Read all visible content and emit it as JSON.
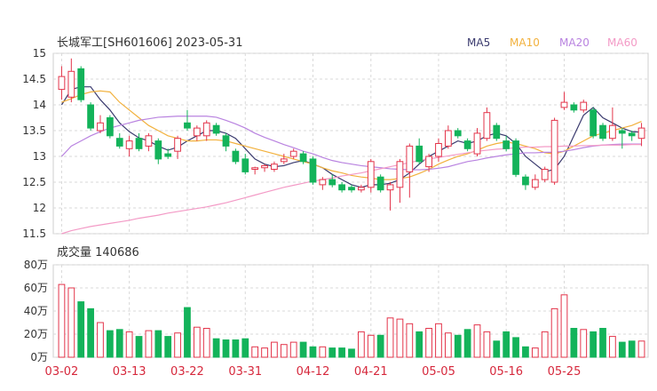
{
  "header": {
    "title": "长城军工[SH601606] 2023-05-31",
    "legend": [
      {
        "label": "MA5",
        "color": "#3a3a6e"
      },
      {
        "label": "MA10",
        "color": "#f2b13d"
      },
      {
        "label": "MA20",
        "color": "#b983e0"
      },
      {
        "label": "MA60",
        "color": "#f39ac6"
      }
    ]
  },
  "volume_panel": {
    "title": "成交量 140686"
  },
  "colors": {
    "up": "#e3344a",
    "down": "#13b35a",
    "grid": "#d9d9d9",
    "axis_text": "#333333",
    "date_text": "#d6283c"
  },
  "chart_data": [
    {
      "type": "candlestick",
      "price_axis": {
        "ylim": [
          11.5,
          15
        ],
        "ticks": [
          "11.5",
          "12",
          "12.5",
          "13",
          "13.5",
          "14",
          "14.5",
          "15"
        ]
      },
      "x_labels": [
        "03-02",
        "03-13",
        "03-22",
        "03-31",
        "04-12",
        "04-21",
        "05-05",
        "05-16",
        "05-25"
      ],
      "x_label_index": [
        0,
        7,
        13,
        19,
        26,
        32,
        39,
        46,
        52
      ],
      "candles": [
        {
          "o": 14.3,
          "h": 14.75,
          "l": 14.1,
          "c": 14.55
        },
        {
          "o": 14.15,
          "h": 14.9,
          "l": 14.05,
          "c": 14.65
        },
        {
          "o": 14.7,
          "h": 14.75,
          "l": 14.05,
          "c": 14.1
        },
        {
          "o": 14.0,
          "h": 14.05,
          "l": 13.5,
          "c": 13.55
        },
        {
          "o": 13.5,
          "h": 13.8,
          "l": 13.45,
          "c": 13.65
        },
        {
          "o": 13.75,
          "h": 13.8,
          "l": 13.35,
          "c": 13.4
        },
        {
          "o": 13.35,
          "h": 13.45,
          "l": 13.15,
          "c": 13.2
        },
        {
          "o": 13.15,
          "h": 13.4,
          "l": 13.0,
          "c": 13.3
        },
        {
          "o": 13.35,
          "h": 13.45,
          "l": 13.1,
          "c": 13.15
        },
        {
          "o": 13.2,
          "h": 13.45,
          "l": 13.1,
          "c": 13.4
        },
        {
          "o": 13.3,
          "h": 13.35,
          "l": 12.85,
          "c": 12.95
        },
        {
          "o": 13.05,
          "h": 13.15,
          "l": 12.95,
          "c": 13.0
        },
        {
          "o": 13.1,
          "h": 13.4,
          "l": 12.95,
          "c": 13.35
        },
        {
          "o": 13.65,
          "h": 13.9,
          "l": 13.5,
          "c": 13.55
        },
        {
          "o": 13.4,
          "h": 13.6,
          "l": 13.3,
          "c": 13.55
        },
        {
          "o": 13.4,
          "h": 13.7,
          "l": 13.3,
          "c": 13.65
        },
        {
          "o": 13.6,
          "h": 13.65,
          "l": 13.4,
          "c": 13.45
        },
        {
          "o": 13.4,
          "h": 13.45,
          "l": 13.1,
          "c": 13.2
        },
        {
          "o": 13.1,
          "h": 13.15,
          "l": 12.85,
          "c": 12.9
        },
        {
          "o": 12.95,
          "h": 13.05,
          "l": 12.65,
          "c": 12.7
        },
        {
          "o": 12.75,
          "h": 12.8,
          "l": 12.65,
          "c": 12.78
        },
        {
          "o": 12.78,
          "h": 12.85,
          "l": 12.7,
          "c": 12.82
        },
        {
          "o": 12.75,
          "h": 12.9,
          "l": 12.7,
          "c": 12.85
        },
        {
          "o": 12.9,
          "h": 13.05,
          "l": 12.85,
          "c": 12.95
        },
        {
          "o": 13.0,
          "h": 13.15,
          "l": 12.95,
          "c": 13.1
        },
        {
          "o": 13.05,
          "h": 13.1,
          "l": 12.85,
          "c": 12.9
        },
        {
          "o": 12.95,
          "h": 13.0,
          "l": 12.45,
          "c": 12.5
        },
        {
          "o": 12.45,
          "h": 12.6,
          "l": 12.35,
          "c": 12.55
        },
        {
          "o": 12.55,
          "h": 12.65,
          "l": 12.4,
          "c": 12.45
        },
        {
          "o": 12.45,
          "h": 12.5,
          "l": 12.3,
          "c": 12.35
        },
        {
          "o": 12.4,
          "h": 12.45,
          "l": 12.3,
          "c": 12.35
        },
        {
          "o": 12.35,
          "h": 12.45,
          "l": 12.3,
          "c": 12.4
        },
        {
          "o": 12.4,
          "h": 12.95,
          "l": 12.3,
          "c": 12.9
        },
        {
          "o": 12.6,
          "h": 12.65,
          "l": 12.3,
          "c": 12.35
        },
        {
          "o": 12.35,
          "h": 12.5,
          "l": 11.95,
          "c": 12.45
        },
        {
          "o": 12.4,
          "h": 12.95,
          "l": 12.1,
          "c": 12.9
        },
        {
          "o": 12.7,
          "h": 13.25,
          "l": 12.2,
          "c": 13.2
        },
        {
          "o": 13.2,
          "h": 13.35,
          "l": 12.85,
          "c": 12.9
        },
        {
          "o": 12.8,
          "h": 13.05,
          "l": 12.7,
          "c": 13.0
        },
        {
          "o": 13.0,
          "h": 13.35,
          "l": 12.9,
          "c": 13.25
        },
        {
          "o": 13.2,
          "h": 13.6,
          "l": 13.15,
          "c": 13.5
        },
        {
          "o": 13.5,
          "h": 13.55,
          "l": 13.35,
          "c": 13.4
        },
        {
          "o": 13.3,
          "h": 13.35,
          "l": 13.1,
          "c": 13.15
        },
        {
          "o": 13.05,
          "h": 13.55,
          "l": 13.0,
          "c": 13.45
        },
        {
          "o": 13.35,
          "h": 13.95,
          "l": 13.3,
          "c": 13.85
        },
        {
          "o": 13.6,
          "h": 13.65,
          "l": 13.3,
          "c": 13.35
        },
        {
          "o": 13.3,
          "h": 13.4,
          "l": 13.1,
          "c": 13.15
        },
        {
          "o": 13.3,
          "h": 13.35,
          "l": 12.6,
          "c": 12.65
        },
        {
          "o": 12.6,
          "h": 12.65,
          "l": 12.35,
          "c": 12.45
        },
        {
          "o": 12.4,
          "h": 12.65,
          "l": 12.35,
          "c": 12.55
        },
        {
          "o": 12.55,
          "h": 12.8,
          "l": 12.5,
          "c": 12.75
        },
        {
          "o": 12.5,
          "h": 13.75,
          "l": 12.45,
          "c": 13.7
        },
        {
          "o": 13.95,
          "h": 14.25,
          "l": 13.9,
          "c": 14.05
        },
        {
          "o": 14.0,
          "h": 14.05,
          "l": 13.85,
          "c": 13.9
        },
        {
          "o": 13.9,
          "h": 14.1,
          "l": 13.85,
          "c": 14.05
        },
        {
          "o": 13.9,
          "h": 13.95,
          "l": 13.35,
          "c": 13.4
        },
        {
          "o": 13.6,
          "h": 13.65,
          "l": 13.3,
          "c": 13.35
        },
        {
          "o": 13.35,
          "h": 13.95,
          "l": 13.3,
          "c": 13.6
        },
        {
          "o": 13.5,
          "h": 13.55,
          "l": 13.15,
          "c": 13.45
        },
        {
          "o": 13.45,
          "h": 13.5,
          "l": 13.3,
          "c": 13.4
        },
        {
          "o": 13.35,
          "h": 13.65,
          "l": 13.2,
          "c": 13.55
        }
      ],
      "ma": {
        "MA5": [
          14.0,
          14.3,
          14.35,
          14.35,
          14.1,
          13.9,
          13.65,
          13.48,
          13.36,
          13.3,
          13.2,
          13.12,
          13.18,
          13.3,
          13.4,
          13.5,
          13.5,
          13.45,
          13.35,
          13.15,
          12.95,
          12.85,
          12.8,
          12.82,
          12.88,
          12.92,
          12.85,
          12.78,
          12.65,
          12.55,
          12.45,
          12.4,
          12.45,
          12.45,
          12.48,
          12.55,
          12.68,
          12.85,
          13.0,
          13.1,
          13.2,
          13.3,
          13.25,
          13.3,
          13.4,
          13.45,
          13.4,
          13.25,
          13.0,
          12.85,
          12.7,
          12.75,
          13.0,
          13.4,
          13.8,
          13.95,
          13.75,
          13.65,
          13.55,
          13.48,
          13.47
        ],
        "MA10": [
          14.05,
          14.12,
          14.2,
          14.25,
          14.27,
          14.25,
          14.05,
          13.9,
          13.75,
          13.6,
          13.5,
          13.4,
          13.35,
          13.3,
          13.3,
          13.32,
          13.32,
          13.3,
          13.25,
          13.2,
          13.15,
          13.1,
          13.05,
          13.0,
          12.95,
          12.9,
          12.85,
          12.78,
          12.72,
          12.68,
          12.63,
          12.6,
          12.58,
          12.55,
          12.55,
          12.57,
          12.6,
          12.67,
          12.75,
          12.85,
          12.93,
          13.0,
          13.05,
          13.12,
          13.2,
          13.25,
          13.28,
          13.25,
          13.2,
          13.15,
          13.07,
          13.05,
          13.1,
          13.2,
          13.3,
          13.4,
          13.45,
          13.5,
          13.55,
          13.6,
          13.68
        ],
        "MA20": [
          13.0,
          13.2,
          13.3,
          13.4,
          13.48,
          13.55,
          13.6,
          13.65,
          13.7,
          13.73,
          13.76,
          13.77,
          13.78,
          13.78,
          13.78,
          13.78,
          13.76,
          13.7,
          13.63,
          13.55,
          13.45,
          13.37,
          13.3,
          13.23,
          13.17,
          13.1,
          13.05,
          12.98,
          12.92,
          12.88,
          12.85,
          12.82,
          12.8,
          12.78,
          12.76,
          12.75,
          12.74,
          12.74,
          12.75,
          12.77,
          12.8,
          12.85,
          12.9,
          12.93,
          12.97,
          13.0,
          13.03,
          13.05,
          13.07,
          13.07,
          13.08,
          13.08,
          13.1,
          13.13,
          13.17,
          13.2,
          13.22,
          13.23,
          13.24,
          13.24,
          13.24
        ],
        "MA60": [
          11.5,
          11.56,
          11.6,
          11.64,
          11.67,
          11.7,
          11.73,
          11.76,
          11.8,
          11.83,
          11.86,
          11.9,
          11.93,
          11.96,
          11.99,
          12.02,
          12.06,
          12.1,
          12.15,
          12.2,
          12.25,
          12.3,
          12.35,
          12.4,
          12.44,
          12.48,
          12.52,
          12.55,
          12.58,
          12.62,
          12.65,
          12.68,
          12.72,
          12.76,
          12.8,
          12.84,
          12.88,
          12.92,
          12.95,
          12.98,
          13.01,
          13.04,
          13.07,
          13.1,
          13.12,
          13.14,
          13.15,
          13.17,
          13.18,
          13.18,
          13.19,
          13.19,
          13.2,
          13.2,
          13.21,
          13.21,
          13.22,
          13.22,
          13.22,
          13.23,
          13.23
        ]
      }
    },
    {
      "type": "bar",
      "ylim": [
        0,
        80
      ],
      "ticks": [
        "0万",
        "20万",
        "40万",
        "60万",
        "80万"
      ],
      "volume_wan": [
        63,
        60,
        48,
        42,
        30,
        23,
        24,
        22,
        18,
        23,
        23,
        18,
        21,
        43,
        26,
        25,
        16,
        15,
        15,
        16,
        9,
        8,
        13,
        11,
        13,
        13,
        9,
        9,
        8,
        8,
        7,
        22,
        19,
        19,
        34,
        33,
        29,
        22,
        25,
        29,
        21,
        19,
        24,
        28,
        22,
        14,
        22,
        17,
        9,
        8,
        22,
        42,
        54,
        25,
        24,
        22,
        25,
        18,
        13,
        14,
        14
      ]
    }
  ]
}
